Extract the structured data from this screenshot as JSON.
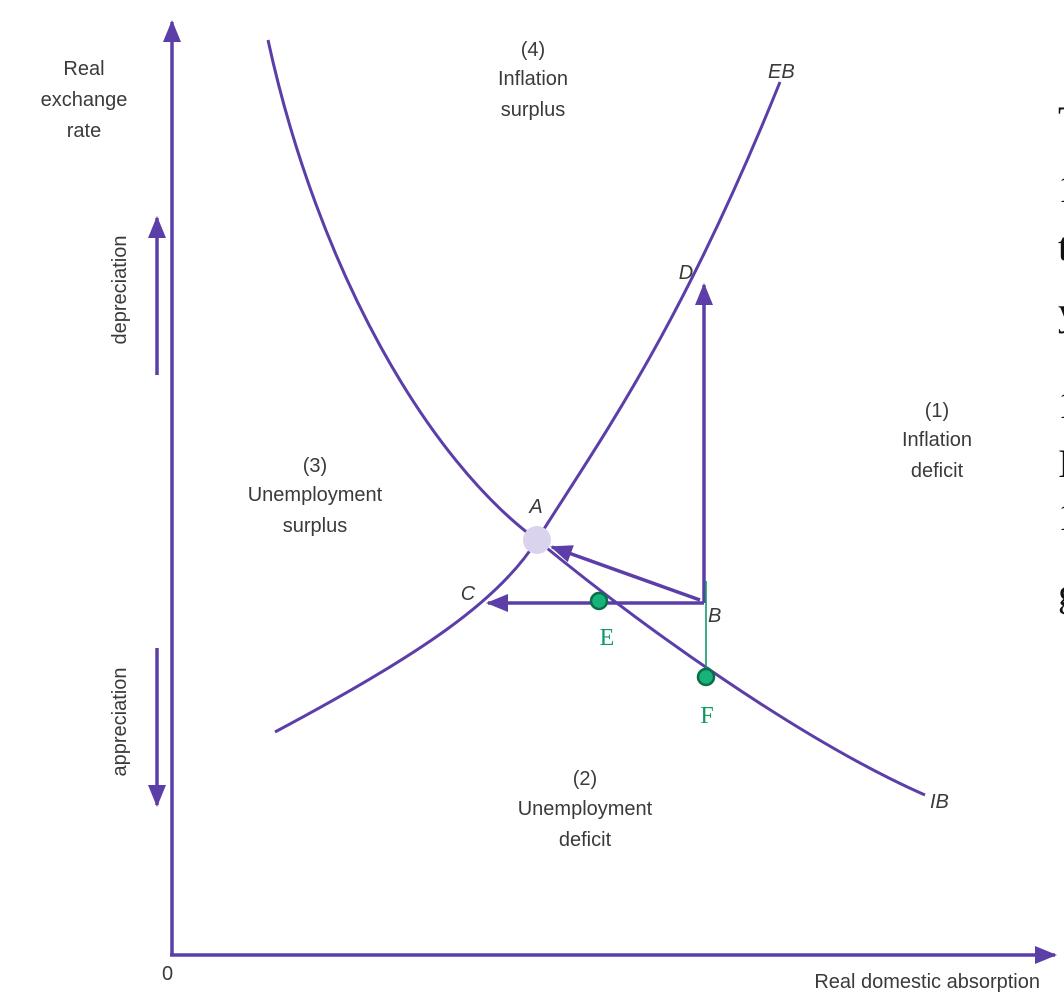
{
  "axes": {
    "y_label_lines": [
      "Real",
      "exchange",
      "rate"
    ],
    "x_label": "Real domestic absorption",
    "origin": "0",
    "up_label": "depreciation",
    "down_label": "appreciation"
  },
  "curves": {
    "eb_label": "EB",
    "ib_label": "IB"
  },
  "regions": {
    "r1": [
      "(1)",
      "Inflation",
      "deficit"
    ],
    "r2": [
      "(2)",
      "Unemployment",
      "deficit"
    ],
    "r3": [
      "(3)",
      "Unemployment",
      "surplus"
    ],
    "r4": [
      "(4)",
      "Inflation",
      "surplus"
    ]
  },
  "points": {
    "a": "A",
    "b": "B",
    "c": "C",
    "d": "D",
    "e": "E",
    "f": "F"
  },
  "colors": {
    "curve": "#5b3ea8",
    "annotation": "#0f9a63",
    "equilibrium_dot": "#d9d3ee"
  },
  "edge_fragments": [
    "T",
    "1",
    "t",
    "y",
    "1",
    "I",
    "1",
    "g"
  ]
}
